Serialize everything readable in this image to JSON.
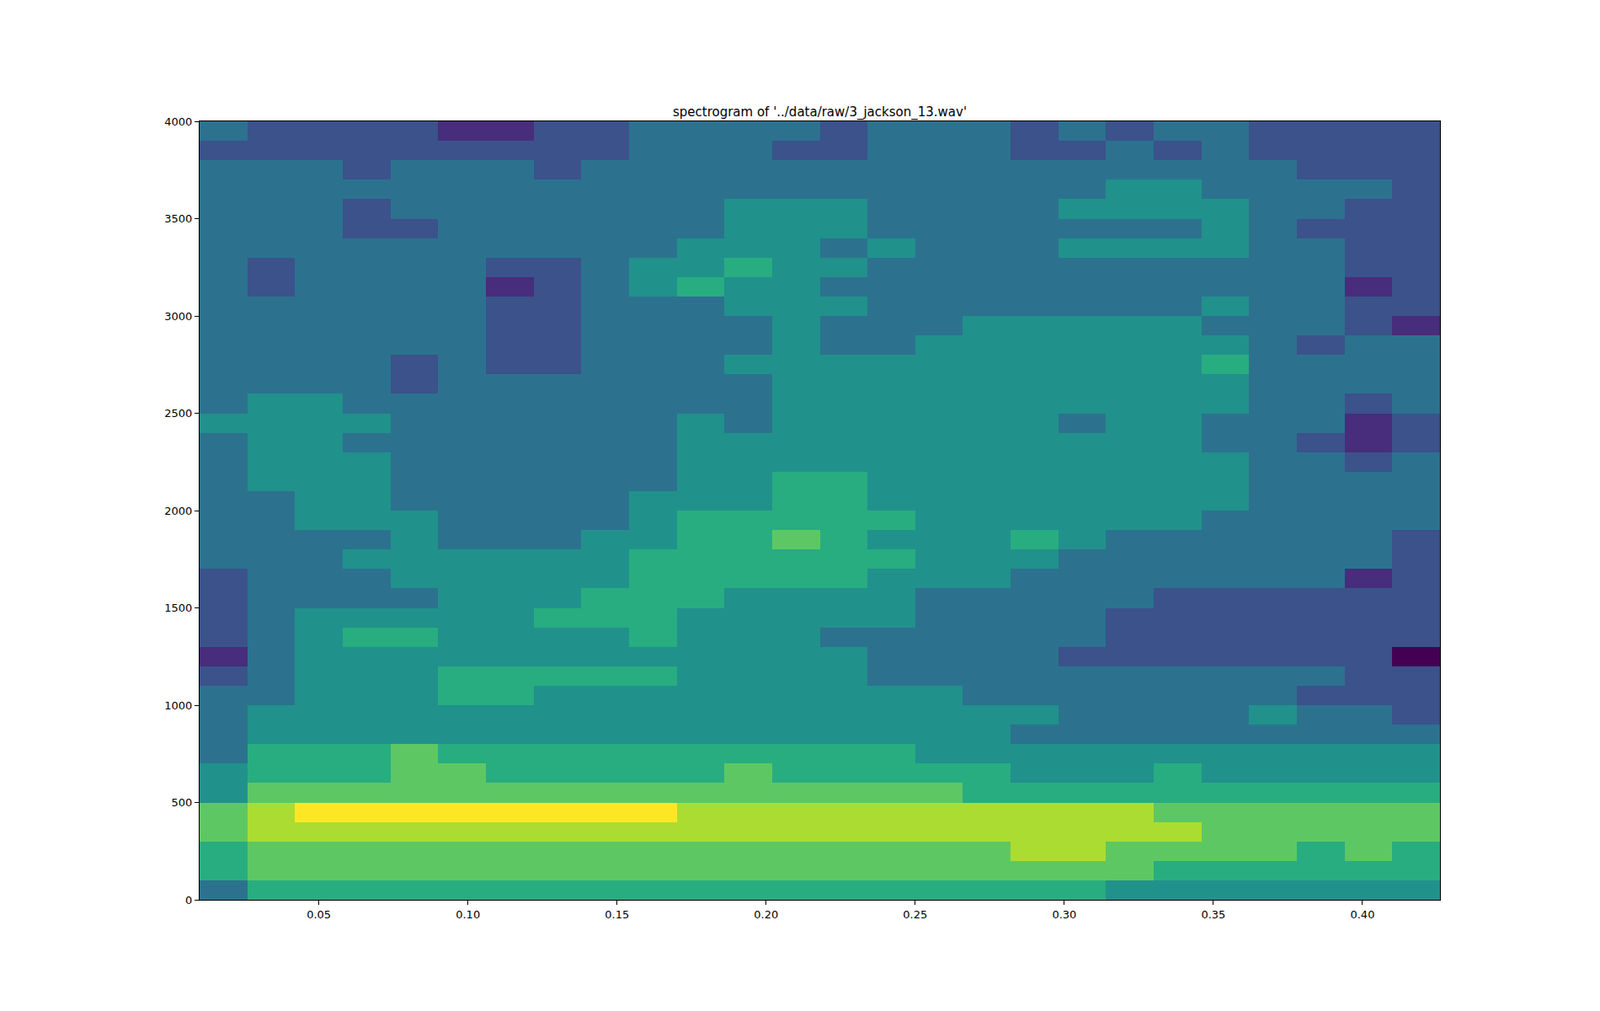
{
  "chart_data": {
    "type": "heatmap",
    "title": "spectrogram of '../data/raw/3_jackson_13.wav'",
    "x": [
      0.018,
      0.034,
      0.05,
      0.066,
      0.082,
      0.098,
      0.114,
      0.13,
      0.146,
      0.162,
      0.178,
      0.194,
      0.21,
      0.226,
      0.242,
      0.258,
      0.274,
      0.29,
      0.306,
      0.322,
      0.338,
      0.354,
      0.37,
      0.386,
      0.402,
      0.418
    ],
    "y": [
      50,
      150,
      250,
      350,
      450,
      550,
      650,
      750,
      850,
      950,
      1050,
      1150,
      1250,
      1350,
      1450,
      1550,
      1650,
      1750,
      1850,
      1950,
      2050,
      2150,
      2250,
      2350,
      2450,
      2550,
      2650,
      2750,
      2850,
      2950,
      3050,
      3150,
      3250,
      3350,
      3450,
      3550,
      3650,
      3750,
      3850,
      3950
    ],
    "cells": [
      [
        5,
        7,
        7,
        7,
        7,
        7,
        7,
        7,
        7,
        7,
        7,
        7,
        7,
        7,
        7,
        7,
        7,
        7,
        7,
        6,
        6,
        6,
        6,
        6,
        6,
        6
      ],
      [
        7,
        8,
        8,
        8,
        8,
        8,
        8,
        8,
        8,
        8,
        8,
        8,
        8,
        8,
        8,
        8,
        8,
        8,
        8,
        8,
        7,
        7,
        7,
        7,
        7,
        7
      ],
      [
        7,
        8,
        8,
        8,
        8,
        8,
        8,
        8,
        8,
        8,
        8,
        8,
        8,
        8,
        8,
        8,
        8,
        9,
        9,
        8,
        8,
        8,
        8,
        7,
        8,
        7
      ],
      [
        8,
        9,
        9,
        9,
        9,
        9,
        9,
        9,
        9,
        9,
        9,
        9,
        9,
        9,
        9,
        9,
        9,
        9,
        9,
        9,
        9,
        8,
        8,
        8,
        8,
        8
      ],
      [
        8,
        9,
        10,
        10,
        10,
        10,
        10,
        10,
        10,
        10,
        9,
        9,
        9,
        9,
        9,
        9,
        9,
        9,
        9,
        9,
        8,
        8,
        8,
        8,
        8,
        8
      ],
      [
        6,
        8,
        8,
        8,
        8,
        8,
        8,
        8,
        8,
        8,
        8,
        8,
        8,
        8,
        8,
        8,
        7,
        7,
        7,
        7,
        7,
        7,
        7,
        7,
        7,
        7
      ],
      [
        6,
        7,
        7,
        7,
        8,
        8,
        7,
        7,
        7,
        7,
        7,
        8,
        7,
        7,
        7,
        7,
        7,
        6,
        6,
        6,
        7,
        6,
        6,
        6,
        6,
        6
      ],
      [
        5,
        7,
        7,
        7,
        8,
        7,
        7,
        7,
        7,
        7,
        7,
        7,
        7,
        7,
        7,
        6,
        6,
        6,
        6,
        6,
        6,
        6,
        6,
        6,
        6,
        6
      ],
      [
        5,
        6,
        6,
        6,
        6,
        6,
        6,
        6,
        6,
        6,
        6,
        6,
        6,
        6,
        6,
        6,
        6,
        5,
        5,
        5,
        5,
        5,
        5,
        5,
        5,
        5
      ],
      [
        5,
        6,
        6,
        6,
        6,
        6,
        6,
        6,
        6,
        6,
        6,
        6,
        6,
        6,
        6,
        6,
        6,
        6,
        5,
        5,
        5,
        5,
        6,
        5,
        5,
        4
      ],
      [
        5,
        5,
        6,
        6,
        6,
        7,
        7,
        6,
        6,
        6,
        6,
        6,
        6,
        6,
        6,
        6,
        5,
        5,
        5,
        5,
        5,
        5,
        5,
        4,
        4,
        4
      ],
      [
        4,
        5,
        6,
        6,
        6,
        7,
        7,
        7,
        7,
        7,
        6,
        6,
        6,
        6,
        5,
        5,
        5,
        5,
        5,
        5,
        5,
        5,
        5,
        5,
        4,
        4
      ],
      [
        3,
        5,
        6,
        6,
        6,
        6,
        6,
        6,
        6,
        6,
        6,
        6,
        6,
        6,
        5,
        5,
        5,
        5,
        4,
        4,
        4,
        4,
        4,
        4,
        4,
        2
      ],
      [
        4,
        5,
        6,
        7,
        7,
        6,
        6,
        6,
        6,
        7,
        6,
        6,
        6,
        5,
        5,
        5,
        5,
        5,
        5,
        4,
        4,
        4,
        4,
        4,
        4,
        4
      ],
      [
        4,
        5,
        6,
        6,
        6,
        6,
        6,
        7,
        7,
        7,
        6,
        6,
        6,
        6,
        6,
        5,
        5,
        5,
        5,
        4,
        4,
        4,
        4,
        4,
        4,
        4
      ],
      [
        4,
        5,
        5,
        5,
        5,
        6,
        6,
        6,
        7,
        7,
        7,
        6,
        6,
        6,
        6,
        5,
        5,
        5,
        5,
        5,
        4,
        4,
        4,
        4,
        4,
        4
      ],
      [
        4,
        5,
        5,
        5,
        6,
        6,
        6,
        6,
        6,
        7,
        7,
        7,
        7,
        7,
        6,
        6,
        6,
        5,
        5,
        5,
        5,
        5,
        5,
        5,
        3,
        4
      ],
      [
        5,
        5,
        5,
        6,
        6,
        6,
        6,
        6,
        6,
        7,
        7,
        7,
        7,
        7,
        7,
        6,
        6,
        6,
        5,
        5,
        5,
        5,
        5,
        5,
        5,
        4
      ],
      [
        5,
        5,
        5,
        5,
        6,
        5,
        5,
        5,
        6,
        6,
        7,
        7,
        8,
        7,
        6,
        6,
        6,
        7,
        6,
        5,
        5,
        5,
        5,
        5,
        5,
        4
      ],
      [
        5,
        5,
        6,
        6,
        6,
        5,
        5,
        5,
        5,
        6,
        7,
        7,
        7,
        7,
        7,
        6,
        6,
        6,
        6,
        6,
        6,
        5,
        5,
        5,
        5,
        5
      ],
      [
        5,
        5,
        6,
        6,
        5,
        5,
        5,
        5,
        5,
        6,
        6,
        6,
        7,
        7,
        6,
        6,
        6,
        6,
        6,
        6,
        6,
        6,
        5,
        5,
        5,
        5
      ],
      [
        5,
        6,
        6,
        6,
        5,
        5,
        5,
        5,
        5,
        5,
        6,
        6,
        7,
        7,
        6,
        6,
        6,
        6,
        6,
        6,
        6,
        6,
        5,
        5,
        5,
        5
      ],
      [
        5,
        6,
        6,
        6,
        5,
        5,
        5,
        5,
        5,
        5,
        6,
        6,
        6,
        6,
        6,
        6,
        6,
        6,
        6,
        6,
        6,
        6,
        5,
        5,
        4,
        5
      ],
      [
        5,
        6,
        6,
        5,
        5,
        5,
        5,
        5,
        5,
        5,
        6,
        6,
        6,
        6,
        6,
        6,
        6,
        6,
        6,
        6,
        6,
        5,
        5,
        4,
        3,
        4
      ],
      [
        6,
        6,
        6,
        6,
        5,
        5,
        5,
        5,
        5,
        5,
        6,
        5,
        6,
        6,
        6,
        6,
        6,
        6,
        5,
        6,
        6,
        5,
        5,
        5,
        3,
        4
      ],
      [
        5,
        6,
        6,
        5,
        5,
        5,
        5,
        5,
        5,
        5,
        5,
        5,
        6,
        6,
        6,
        6,
        6,
        6,
        6,
        6,
        6,
        6,
        5,
        5,
        4,
        5
      ],
      [
        5,
        5,
        5,
        5,
        4,
        5,
        5,
        5,
        5,
        5,
        5,
        5,
        6,
        6,
        6,
        6,
        6,
        6,
        6,
        6,
        6,
        6,
        5,
        5,
        5,
        5
      ],
      [
        5,
        5,
        5,
        5,
        4,
        5,
        4,
        4,
        5,
        5,
        5,
        6,
        6,
        6,
        6,
        6,
        6,
        6,
        6,
        6,
        6,
        7,
        5,
        5,
        5,
        5
      ],
      [
        5,
        5,
        5,
        5,
        5,
        5,
        4,
        4,
        5,
        5,
        5,
        5,
        6,
        5,
        5,
        6,
        6,
        6,
        6,
        6,
        6,
        6,
        5,
        4,
        5,
        5
      ],
      [
        5,
        5,
        5,
        5,
        5,
        5,
        4,
        4,
        5,
        5,
        5,
        5,
        6,
        5,
        5,
        5,
        6,
        6,
        6,
        6,
        6,
        5,
        5,
        5,
        4,
        3
      ],
      [
        5,
        5,
        5,
        5,
        5,
        5,
        4,
        4,
        5,
        5,
        5,
        6,
        6,
        6,
        5,
        5,
        5,
        5,
        5,
        5,
        5,
        6,
        5,
        5,
        4,
        4
      ],
      [
        5,
        4,
        5,
        5,
        5,
        5,
        3,
        4,
        5,
        6,
        7,
        6,
        6,
        5,
        5,
        5,
        5,
        5,
        5,
        5,
        5,
        5,
        5,
        5,
        3,
        4
      ],
      [
        5,
        4,
        5,
        5,
        5,
        5,
        4,
        4,
        5,
        6,
        6,
        7,
        6,
        6,
        5,
        5,
        5,
        5,
        5,
        5,
        5,
        5,
        5,
        5,
        4,
        4
      ],
      [
        5,
        5,
        5,
        5,
        5,
        5,
        5,
        5,
        5,
        5,
        6,
        6,
        6,
        5,
        6,
        5,
        5,
        5,
        6,
        6,
        6,
        6,
        5,
        5,
        4,
        4
      ],
      [
        5,
        5,
        5,
        4,
        4,
        5,
        5,
        5,
        5,
        5,
        5,
        6,
        6,
        6,
        5,
        5,
        5,
        5,
        5,
        5,
        5,
        6,
        5,
        4,
        4,
        4
      ],
      [
        5,
        5,
        5,
        4,
        5,
        5,
        5,
        5,
        5,
        5,
        5,
        6,
        6,
        6,
        5,
        5,
        5,
        5,
        6,
        6,
        6,
        6,
        5,
        5,
        4,
        4
      ],
      [
        5,
        5,
        5,
        5,
        5,
        5,
        5,
        5,
        5,
        5,
        5,
        5,
        5,
        5,
        5,
        5,
        5,
        5,
        5,
        6,
        6,
        5,
        5,
        5,
        5,
        4
      ],
      [
        5,
        5,
        5,
        4,
        5,
        5,
        5,
        4,
        5,
        5,
        5,
        5,
        5,
        5,
        5,
        5,
        5,
        5,
        5,
        5,
        5,
        5,
        5,
        4,
        4,
        4
      ],
      [
        4,
        4,
        4,
        4,
        4,
        4,
        4,
        4,
        4,
        5,
        5,
        5,
        4,
        4,
        5,
        5,
        5,
        4,
        4,
        5,
        4,
        5,
        4,
        4,
        4,
        4
      ],
      [
        5,
        4,
        4,
        4,
        4,
        3,
        3,
        4,
        4,
        5,
        5,
        5,
        5,
        4,
        5,
        5,
        5,
        4,
        5,
        4,
        5,
        5,
        4,
        4,
        4,
        4
      ]
    ],
    "xlim": [
      0.01,
      0.426
    ],
    "ylim": [
      0,
      4000
    ],
    "xticks": [
      {
        "value": 0.05,
        "label": "0.05"
      },
      {
        "value": 0.1,
        "label": "0.10"
      },
      {
        "value": 0.15,
        "label": "0.15"
      },
      {
        "value": 0.2,
        "label": "0.20"
      },
      {
        "value": 0.25,
        "label": "0.25"
      },
      {
        "value": 0.3,
        "label": "0.30"
      },
      {
        "value": 0.35,
        "label": "0.35"
      },
      {
        "value": 0.4,
        "label": "0.40"
      }
    ],
    "yticks": [
      0,
      500,
      1000,
      1500,
      2000,
      2500,
      3000,
      3500,
      4000
    ],
    "grid": false
  }
}
